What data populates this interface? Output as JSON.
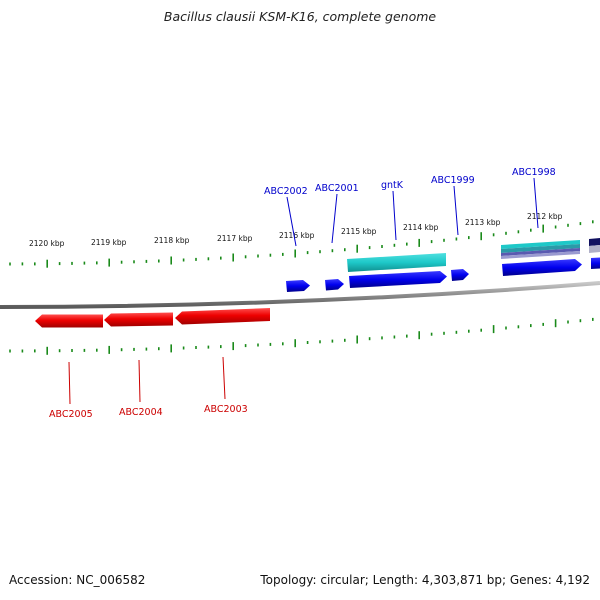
{
  "title": "Bacillus clausii KSM-K16, complete genome",
  "footer": {
    "accession": "Accession: NC_006582",
    "info": "Topology: circular; Length: 4,303,871 bp; Genes: 4,192"
  },
  "colors": {
    "forward_gene": "#0000ee",
    "forward_gene_alt": "#1ec8c8",
    "reverse_gene": "#ee0000",
    "tick": "#1a8a1a",
    "backbone": "#808080",
    "forward_label": "#0000cc",
    "reverse_label": "#cc0000"
  },
  "scale": {
    "unit": "kbp",
    "ticks": [
      "2120 kbp",
      "2119 kbp",
      "2118 kbp",
      "2117 kbp",
      "2116 kbp",
      "2115 kbp",
      "2114 kbp",
      "2113 kbp",
      "2112 kbp"
    ]
  },
  "genes_forward": [
    {
      "label": "ABC2002"
    },
    {
      "label": "ABC2001"
    },
    {
      "label": "gntK"
    },
    {
      "label": "ABC1999"
    },
    {
      "label": "ABC1998"
    }
  ],
  "genes_reverse": [
    {
      "label": "ABC2005"
    },
    {
      "label": "ABC2004"
    },
    {
      "label": "ABC2003"
    }
  ]
}
